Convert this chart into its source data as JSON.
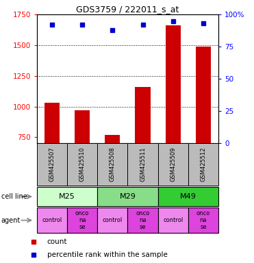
{
  "title": "GDS3759 / 222011_s_at",
  "samples": [
    "GSM425507",
    "GSM425510",
    "GSM425508",
    "GSM425511",
    "GSM425509",
    "GSM425512"
  ],
  "counts": [
    1030,
    970,
    770,
    1160,
    1660,
    1490
  ],
  "percentile_ranks": [
    92,
    92,
    88,
    92,
    95,
    93
  ],
  "cell_lines": [
    {
      "label": "M25",
      "span": [
        0,
        2
      ],
      "color": "#ccffcc"
    },
    {
      "label": "M29",
      "span": [
        2,
        4
      ],
      "color": "#88dd88"
    },
    {
      "label": "M49",
      "span": [
        4,
        6
      ],
      "color": "#33cc33"
    }
  ],
  "agents": [
    "control",
    "onco\nna\nse",
    "control",
    "onco\nna\nse",
    "control",
    "onco\nna\nse"
  ],
  "agent_colors": [
    "#ee88ee",
    "#dd44dd",
    "#ee88ee",
    "#dd44dd",
    "#ee88ee",
    "#dd44dd"
  ],
  "bar_color": "#cc0000",
  "dot_color": "#0000cc",
  "ylim_left": [
    700,
    1750
  ],
  "ylim_right": [
    0,
    100
  ],
  "yticks_left": [
    750,
    1000,
    1250,
    1500,
    1750
  ],
  "yticks_right": [
    0,
    25,
    50,
    75,
    100
  ],
  "ytick_labels_right": [
    "0",
    "25",
    "50",
    "75",
    "100%"
  ],
  "sample_box_color": "#bbbbbb",
  "bar_width": 0.5,
  "grid_lines": [
    1000,
    1250,
    1500
  ]
}
